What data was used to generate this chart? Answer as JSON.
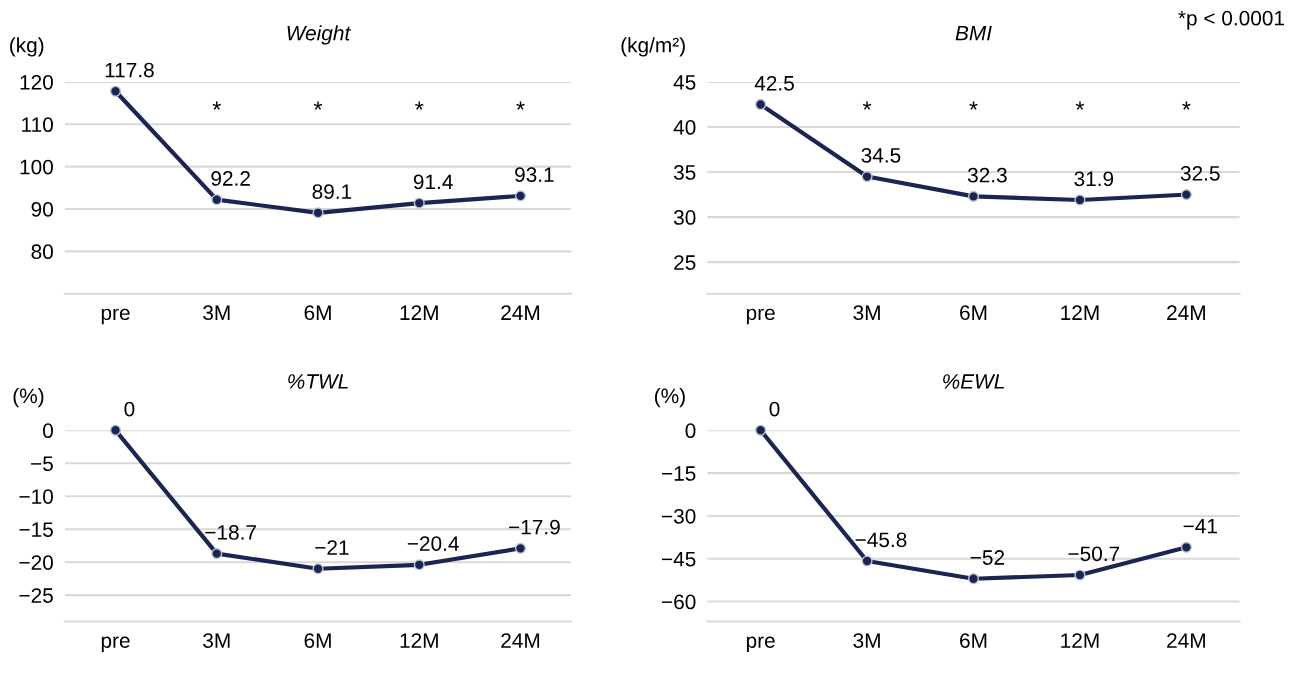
{
  "chart_data": [
    {
      "type": "line",
      "title": "Weight",
      "ylabel": "(kg)",
      "categories": [
        "pre",
        "3M",
        "6M",
        "12M",
        "24M"
      ],
      "series": [
        {
          "color": "#1c2452",
          "values": [
            117.8,
            92.2,
            89.1,
            91.4,
            93.1
          ]
        }
      ],
      "ylim": [
        70,
        120
      ],
      "yticks": [
        80,
        90,
        100,
        110,
        120
      ],
      "grid": "y",
      "marker": "circle",
      "line_style": "solid",
      "data_labels": true,
      "annotations": [
        "*",
        "*",
        "*",
        "*"
      ]
    },
    {
      "type": "line",
      "title": "BMI",
      "ylabel": "(kg/m²)",
      "categories": [
        "pre",
        "3M",
        "6M",
        "12M",
        "24M"
      ],
      "series": [
        {
          "color": "#1c2452",
          "values": [
            42.5,
            34.5,
            32.3,
            31.9,
            32.5
          ]
        }
      ],
      "ylim": [
        21.5,
        45
      ],
      "yticks": [
        25,
        30,
        35,
        40,
        45
      ],
      "grid": "y",
      "marker": "circle",
      "line_style": "solid",
      "data_labels": true,
      "annotations": [
        "*",
        "*",
        "*",
        "*",
        "*p < 0.0001"
      ]
    },
    {
      "type": "line",
      "title": "%TWL",
      "ylabel": "(%)",
      "categories": [
        "pre",
        "3M",
        "6M",
        "12M",
        "24M"
      ],
      "series": [
        {
          "color": "#1c2452",
          "values": [
            0,
            -18.7,
            -21,
            -20.4,
            -17.9
          ]
        }
      ],
      "ylim": [
        -29,
        0
      ],
      "yticks": [
        {
          "value": 0,
          "label": "0"
        },
        {
          "value": -5,
          "label": "−5"
        },
        {
          "value": -10,
          "label": "−10"
        },
        {
          "value": -15,
          "label": "−15"
        },
        {
          "value": -20,
          "label": "−20"
        },
        {
          "value": -25,
          "label": "−25"
        }
      ],
      "grid": "y",
      "marker": "circle",
      "line_style": "solid",
      "value_labels": [
        "0",
        "−18.7",
        "−21",
        "−20.4",
        "−17.9"
      ]
    },
    {
      "type": "line",
      "title": "%EWL",
      "ylabel": "(%)",
      "categories": [
        "pre",
        "3M",
        "6M",
        "12M",
        "24M"
      ],
      "series": [
        {
          "color": "#1c2452",
          "values": [
            0,
            -45.8,
            -52,
            -50.7,
            -41
          ]
        }
      ],
      "ylim": [
        -67,
        0
      ],
      "yticks": [
        {
          "value": 0,
          "label": "0"
        },
        {
          "value": -15,
          "label": "−15"
        },
        {
          "value": -30,
          "label": "−30"
        },
        {
          "value": -45,
          "label": "−45"
        },
        {
          "value": -60,
          "label": "−60"
        }
      ],
      "grid": "y",
      "marker": "circle",
      "line_style": "solid",
      "value_labels": [
        "0",
        "−45.8",
        "−52",
        "−50.7",
        "−41"
      ]
    }
  ]
}
